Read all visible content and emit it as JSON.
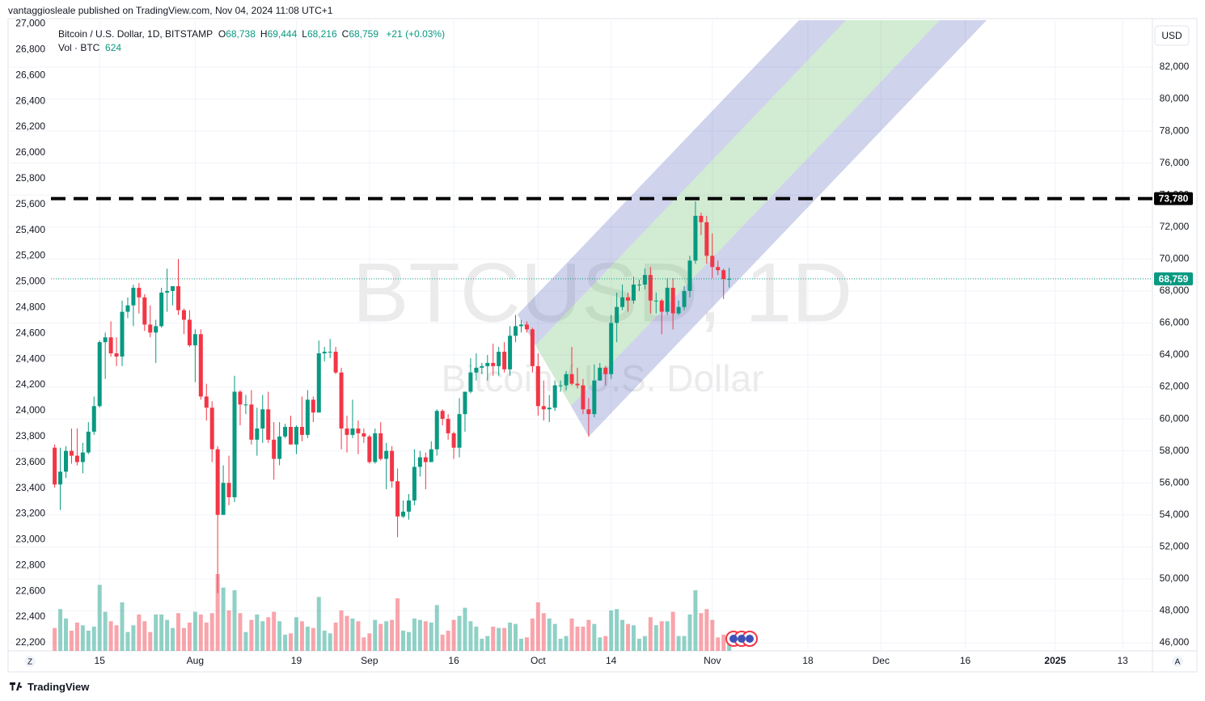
{
  "header": {
    "publisher": "vantaggiosleale published on TradingView.com, Nov 04, 2024 11:08 UTC+1"
  },
  "footer": {
    "brand": "TradingView"
  },
  "chart_data": {
    "type": "candlestick",
    "symbol_title": "Bitcoin / U.S. Dollar, 1D, BITSTAMP",
    "ohlc_legend": [
      {
        "key": "O",
        "text": "68,738"
      },
      {
        "key": "H",
        "text": "69,444"
      },
      {
        "key": "L",
        "text": "68,216"
      },
      {
        "key": "C",
        "text": "68,759"
      }
    ],
    "change": "+21 (+0.03%)",
    "volume_title": "Vol · BTC",
    "volume_last": "624",
    "watermark": [
      "BTCUSD, 1D",
      "Bitcoin / U.S. Dollar"
    ],
    "currency": "USD",
    "axis_buttons": [
      "Z",
      "A"
    ],
    "up_color": "#089981",
    "down_color": "#f23645",
    "ohlc": [
      [
        58200,
        58400,
        55700,
        55900
      ],
      [
        55900,
        58200,
        54300,
        56700
      ],
      [
        56700,
        58300,
        56300,
        58000
      ],
      [
        58000,
        59400,
        57200,
        57700
      ],
      [
        57700,
        59400,
        57100,
        57300
      ],
      [
        57300,
        58500,
        56600,
        57900
      ],
      [
        57900,
        59800,
        57800,
        59200
      ],
      [
        59200,
        61400,
        59000,
        60800
      ],
      [
        60800,
        64900,
        60700,
        64800
      ],
      [
        64800,
        65400,
        62500,
        65100
      ],
      [
        65100,
        66100,
        63900,
        64100
      ],
      [
        64100,
        65100,
        63300,
        63900
      ],
      [
        63900,
        67400,
        63300,
        66700
      ],
      [
        66700,
        67600,
        66300,
        67100
      ],
      [
        67100,
        68400,
        65800,
        68200
      ],
      [
        68200,
        68500,
        66600,
        67600
      ],
      [
        67600,
        67800,
        65500,
        65900
      ],
      [
        65900,
        67100,
        65100,
        65400
      ],
      [
        65400,
        66200,
        63500,
        65800
      ],
      [
        65800,
        68200,
        65700,
        67900
      ],
      [
        67900,
        69400,
        66700,
        68000
      ],
      [
        68000,
        68300,
        67100,
        68300
      ],
      [
        68300,
        70000,
        66500,
        66800
      ],
      [
        66800,
        66900,
        65300,
        66200
      ],
      [
        66200,
        66800,
        64500,
        64600
      ],
      [
        64600,
        65600,
        62300,
        65300
      ],
      [
        65300,
        65600,
        61200,
        61400
      ],
      [
        61400,
        62200,
        59900,
        60700
      ],
      [
        60700,
        61100,
        57300,
        58100
      ],
      [
        58100,
        58300,
        49100,
        54000
      ],
      [
        54000,
        57100,
        54000,
        56000
      ],
      [
        56000,
        57700,
        54600,
        55100
      ],
      [
        55100,
        62700,
        54800,
        61700
      ],
      [
        61700,
        61800,
        59600,
        60900
      ],
      [
        60900,
        61500,
        60300,
        60900
      ],
      [
        60900,
        61800,
        58400,
        58700
      ],
      [
        58700,
        60700,
        57700,
        59400
      ],
      [
        59400,
        61500,
        58500,
        60600
      ],
      [
        60600,
        61700,
        58500,
        58700
      ],
      [
        58700,
        59800,
        56200,
        57500
      ],
      [
        57500,
        59800,
        57100,
        58900
      ],
      [
        58900,
        59700,
        58800,
        59500
      ],
      [
        59500,
        60200,
        58400,
        58400
      ],
      [
        58400,
        59600,
        57800,
        59500
      ],
      [
        59500,
        61400,
        58600,
        59000
      ],
      [
        59000,
        61800,
        58800,
        61200
      ],
      [
        61200,
        61400,
        59800,
        60400
      ],
      [
        60400,
        64900,
        60400,
        64100
      ],
      [
        64100,
        64500,
        63600,
        64200
      ],
      [
        64200,
        65000,
        63800,
        64200
      ],
      [
        64200,
        64500,
        62800,
        62900
      ],
      [
        62900,
        63200,
        58100,
        59400
      ],
      [
        59400,
        60200,
        57900,
        59000
      ],
      [
        59000,
        61200,
        58800,
        59400
      ],
      [
        59400,
        59900,
        57800,
        59100
      ],
      [
        59100,
        59400,
        58500,
        58900
      ],
      [
        58900,
        59000,
        57200,
        57300
      ],
      [
        57300,
        59400,
        57200,
        59100
      ],
      [
        59100,
        59800,
        57400,
        57500
      ],
      [
        57500,
        58500,
        55600,
        58000
      ],
      [
        58000,
        58300,
        55700,
        56100
      ],
      [
        56100,
        56900,
        52600,
        53900
      ],
      [
        53900,
        54900,
        53800,
        54200
      ],
      [
        54200,
        55300,
        53700,
        54900
      ],
      [
        54900,
        58100,
        54600,
        57000
      ],
      [
        57000,
        58000,
        56400,
        57600
      ],
      [
        57600,
        57900,
        55600,
        57300
      ],
      [
        57300,
        58600,
        57300,
        58100
      ],
      [
        58100,
        60600,
        57700,
        60500
      ],
      [
        60500,
        60600,
        59600,
        60000
      ],
      [
        60000,
        60300,
        58700,
        59100
      ],
      [
        59100,
        59200,
        57500,
        58200
      ],
      [
        58200,
        61300,
        57600,
        60300
      ],
      [
        60300,
        61700,
        59200,
        61700
      ],
      [
        61700,
        63800,
        61600,
        62900
      ],
      [
        62900,
        64100,
        62400,
        63200
      ],
      [
        63200,
        63500,
        62800,
        63300
      ],
      [
        63300,
        64000,
        62400,
        63500
      ],
      [
        63500,
        64700,
        62700,
        63300
      ],
      [
        63300,
        64500,
        62700,
        64200
      ],
      [
        64200,
        64800,
        62900,
        63100
      ],
      [
        63100,
        65800,
        62700,
        65200
      ],
      [
        65200,
        66500,
        64800,
        65800
      ],
      [
        65800,
        66200,
        65400,
        65900
      ],
      [
        65900,
        66100,
        65400,
        65600
      ],
      [
        65600,
        65700,
        62900,
        63300
      ],
      [
        63300,
        64100,
        60200,
        60800
      ],
      [
        60800,
        62400,
        59900,
        60600
      ],
      [
        60600,
        61500,
        59800,
        60700
      ],
      [
        60700,
        62400,
        60500,
        62100
      ],
      [
        62100,
        62400,
        61700,
        62100
      ],
      [
        62100,
        63000,
        61800,
        62800
      ],
      [
        62800,
        64500,
        62100,
        62200
      ],
      [
        62200,
        63200,
        61900,
        62100
      ],
      [
        62100,
        62500,
        60300,
        60600
      ],
      [
        60600,
        61300,
        58900,
        60300
      ],
      [
        60300,
        63400,
        60100,
        62400
      ],
      [
        62400,
        63500,
        62400,
        63200
      ],
      [
        63200,
        63300,
        62100,
        62800
      ],
      [
        62800,
        66500,
        62500,
        66000
      ],
      [
        66000,
        67900,
        64800,
        67000
      ],
      [
        67000,
        68400,
        66800,
        67600
      ],
      [
        67600,
        67900,
        66700,
        67400
      ],
      [
        67400,
        68900,
        67200,
        68400
      ],
      [
        68400,
        68700,
        68000,
        68400
      ],
      [
        68400,
        69400,
        68100,
        69000
      ],
      [
        69000,
        69500,
        66600,
        67400
      ],
      [
        67400,
        67900,
        66600,
        67400
      ],
      [
        67400,
        67500,
        65300,
        66700
      ],
      [
        66700,
        68800,
        66500,
        68200
      ],
      [
        68200,
        68800,
        65600,
        66600
      ],
      [
        66600,
        67400,
        66500,
        67000
      ],
      [
        67000,
        68300,
        66800,
        68000
      ],
      [
        68000,
        70200,
        67600,
        69900
      ],
      [
        69900,
        73600,
        69700,
        72700
      ],
      [
        72700,
        72900,
        71500,
        72300
      ],
      [
        72300,
        72700,
        69700,
        70200
      ],
      [
        70200,
        71600,
        68800,
        69500
      ],
      [
        69500,
        69900,
        69000,
        69300
      ],
      [
        69300,
        69400,
        67500,
        68738
      ],
      [
        68738,
        69444,
        68216,
        68759
      ]
    ],
    "volume": [
      1700,
      3100,
      2400,
      1500,
      2100,
      1900,
      1500,
      1800,
      4900,
      2900,
      2200,
      1900,
      3600,
      1400,
      1900,
      2700,
      2200,
      1400,
      2700,
      2700,
      2300,
      1700,
      2800,
      1700,
      2100,
      2900,
      2700,
      2100,
      2800,
      5700,
      4700,
      3000,
      4500,
      2800,
      1400,
      2300,
      2700,
      2200,
      2500,
      2900,
      2200,
      1200,
      1300,
      2500,
      2200,
      1800,
      1700,
      4000,
      1500,
      1300,
      2100,
      3000,
      2600,
      2400,
      2200,
      1000,
      1300,
      2300,
      2000,
      2200,
      2300,
      3900,
      1500,
      1400,
      2400,
      2300,
      2200,
      2100,
      3400,
      1200,
      1500,
      2300,
      2600,
      3200,
      2200,
      1800,
      900,
      1100,
      1800,
      1700,
      1700,
      2100,
      2000,
      900,
      1000,
      2400,
      3600,
      2800,
      2400,
      2000,
      900,
      1100,
      2400,
      1800,
      1800,
      2300,
      2000,
      1000,
      1100,
      3000,
      3100,
      2300,
      2000,
      1900,
      900,
      1100,
      2500,
      1900,
      2200,
      2200,
      2900,
      1100,
      1100,
      2700,
      4500,
      2800,
      3100,
      2300,
      1000,
      1200,
      624
    ],
    "volume_lim": [
      0,
      46800
    ],
    "xlim": [
      -8,
      195.3
    ],
    "xticks": [
      {
        "value": 8,
        "label": "15"
      },
      {
        "value": 25,
        "label": "Aug"
      },
      {
        "value": 43,
        "label": "19"
      },
      {
        "value": 56,
        "label": "Sep"
      },
      {
        "value": 71,
        "label": "16"
      },
      {
        "value": 86,
        "label": "Oct"
      },
      {
        "value": 99,
        "label": "14"
      },
      {
        "value": 117,
        "label": "Nov"
      },
      {
        "value": 134,
        "label": "18"
      },
      {
        "value": 147,
        "label": "Dec"
      },
      {
        "value": 162,
        "label": "16"
      },
      {
        "value": 178,
        "label": "2025"
      },
      {
        "value": 190,
        "label": "13"
      }
    ],
    "ylim": [
      45494,
      84932
    ],
    "yticks": [
      {
        "value": 46000,
        "label": "46,000"
      },
      {
        "value": 48000,
        "label": "48,000"
      },
      {
        "value": 50000,
        "label": "50,000"
      },
      {
        "value": 52000,
        "label": "52,000"
      },
      {
        "value": 54000,
        "label": "54,000"
      },
      {
        "value": 56000,
        "label": "56,000"
      },
      {
        "value": 58000,
        "label": "58,000"
      },
      {
        "value": 60000,
        "label": "60,000"
      },
      {
        "value": 62000,
        "label": "62,000"
      },
      {
        "value": 64000,
        "label": "64,000"
      },
      {
        "value": 66000,
        "label": "66,000"
      },
      {
        "value": 68000,
        "label": "68,000"
      },
      {
        "value": 70000,
        "label": "70,000"
      },
      {
        "value": 72000,
        "label": "72,000"
      },
      {
        "value": 74000,
        "label": "74,000"
      },
      {
        "value": 76000,
        "label": "76,000"
      },
      {
        "value": 78000,
        "label": "78,000"
      },
      {
        "value": 80000,
        "label": "80,000"
      },
      {
        "value": 82000,
        "label": "82,000"
      }
    ],
    "y2lim": [
      22137,
      27028
    ],
    "y2ticks": [
      {
        "value": 22200,
        "label": "22,200"
      },
      {
        "value": 22400,
        "label": "22,400"
      },
      {
        "value": 22600,
        "label": "22,600"
      },
      {
        "value": 22800,
        "label": "22,800"
      },
      {
        "value": 23000,
        "label": "23,000"
      },
      {
        "value": 23200,
        "label": "23,200"
      },
      {
        "value": 23400,
        "label": "23,400"
      },
      {
        "value": 23600,
        "label": "23,600"
      },
      {
        "value": 23800,
        "label": "23,800"
      },
      {
        "value": 24000,
        "label": "24,000"
      },
      {
        "value": 24200,
        "label": "24,200"
      },
      {
        "value": 24400,
        "label": "24,400"
      },
      {
        "value": 24600,
        "label": "24,600"
      },
      {
        "value": 24800,
        "label": "24,800"
      },
      {
        "value": 25000,
        "label": "25,000"
      },
      {
        "value": 25200,
        "label": "25,200"
      },
      {
        "value": 25400,
        "label": "25,400"
      },
      {
        "value": 25600,
        "label": "25,600"
      },
      {
        "value": 25800,
        "label": "25,800"
      },
      {
        "value": 26000,
        "label": "26,000"
      },
      {
        "value": 26200,
        "label": "26,200"
      },
      {
        "value": 26400,
        "label": "26,400"
      },
      {
        "value": 26600,
        "label": "26,600"
      },
      {
        "value": 26800,
        "label": "26,800"
      },
      {
        "value": 27000,
        "label": "27,000"
      }
    ],
    "price_lines": [
      {
        "value": 73780,
        "label": "73,780",
        "style": "dashed"
      },
      {
        "value": 68759,
        "label": "68,759",
        "style": "last"
      }
    ]
  }
}
